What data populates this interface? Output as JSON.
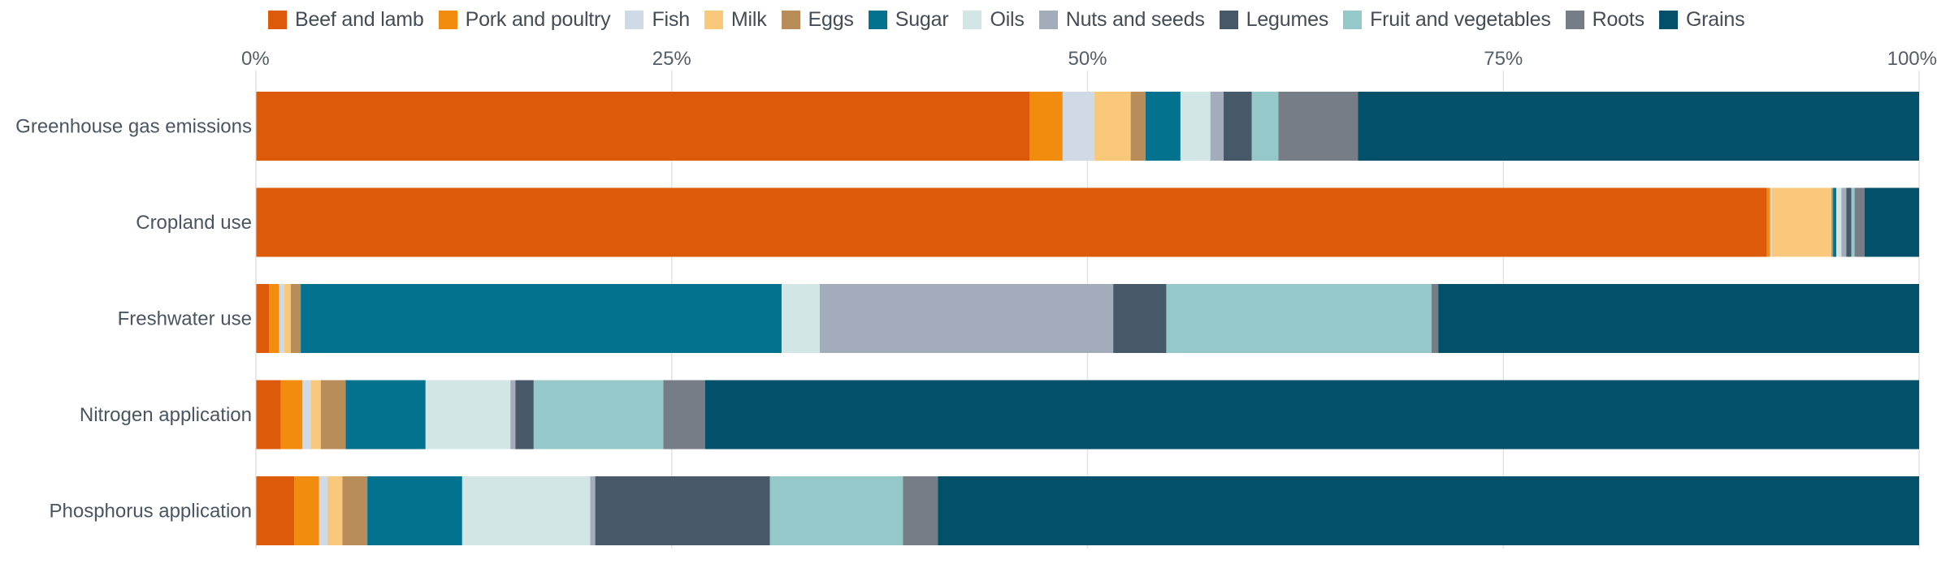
{
  "chart_data": {
    "type": "bar",
    "orientation": "horizontal",
    "stacked": true,
    "categories": [
      "Greenhouse gas emissions",
      "Cropland use",
      "Freshwater use",
      "Nitrogen application",
      "Phosphorus application"
    ],
    "x_ticks": [
      "0%",
      "25%",
      "50%",
      "75%",
      "100%"
    ],
    "xlim": [
      0,
      100
    ],
    "grid": true,
    "legend_position": "top",
    "series": [
      {
        "name": "Beef and lamb",
        "color": "#dd5a0a",
        "values": [
          46.6,
          91.3,
          0.8,
          1.5,
          2.3
        ]
      },
      {
        "name": "Pork and poultry",
        "color": "#f28c0f",
        "values": [
          2.0,
          0.2,
          0.6,
          1.3,
          1.5
        ]
      },
      {
        "name": "Fish",
        "color": "#d0dae6",
        "values": [
          1.9,
          0.1,
          0.3,
          0.5,
          0.5
        ]
      },
      {
        "name": "Milk",
        "color": "#fac87a",
        "values": [
          2.2,
          3.6,
          0.4,
          0.6,
          0.9
        ]
      },
      {
        "name": "Eggs",
        "color": "#b88d5a",
        "values": [
          0.9,
          0.1,
          0.6,
          1.5,
          1.5
        ]
      },
      {
        "name": "Sugar",
        "color": "#02728f",
        "values": [
          2.1,
          0.2,
          29.0,
          4.8,
          5.7
        ]
      },
      {
        "name": "Oils",
        "color": "#d2e6e6",
        "values": [
          1.8,
          0.3,
          2.3,
          5.1,
          7.7
        ]
      },
      {
        "name": "Nuts and seeds",
        "color": "#a2acba",
        "values": [
          0.8,
          0.3,
          17.7,
          0.3,
          0.3
        ]
      },
      {
        "name": "Legumes",
        "color": "#475969",
        "values": [
          1.7,
          0.3,
          3.2,
          1.1,
          10.5
        ]
      },
      {
        "name": "Fruit and vegetables",
        "color": "#95c8c8",
        "values": [
          1.6,
          0.2,
          16.0,
          7.8,
          8.0
        ]
      },
      {
        "name": "Roots",
        "color": "#777d87",
        "values": [
          4.8,
          0.6,
          0.4,
          2.5,
          2.1
        ]
      },
      {
        "name": "Grains",
        "color": "#03506b",
        "values": [
          33.8,
          3.3,
          29.0,
          73.0,
          59.0
        ]
      }
    ]
  }
}
